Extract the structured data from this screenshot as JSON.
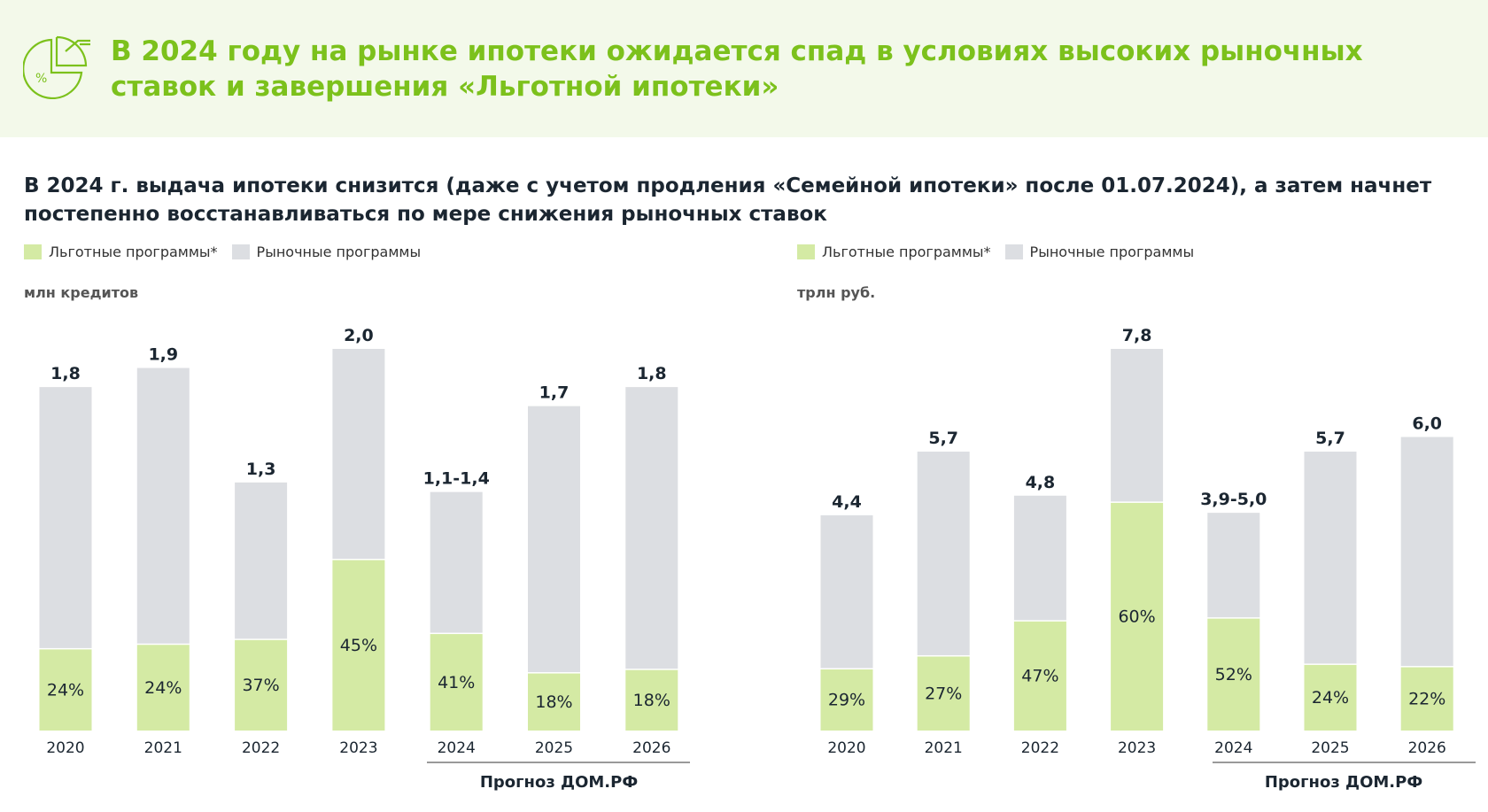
{
  "header": {
    "title": "В 2024 году на рынке ипотеки ожидается спад в условиях высоких рыночных ставок и завершения «Льготной ипотеки»",
    "icon": "pie-chart-percent-icon"
  },
  "subtitle": "В 2024 г. выдача ипотеки снизится (даже с учетом продления «Семейной ипотеки» после 01.07.2024), а затем начнет постепенно восстанавливаться по мере снижения рыночных ставок",
  "colors": {
    "title": "#7cc11c",
    "preferential": "#d4eaa4",
    "market": "#dcdee2",
    "text": "#1b2631"
  },
  "chart_data": [
    {
      "type": "bar",
      "stacked": true,
      "ylabel": "млн кредитов",
      "legend": [
        "Льготные программы*",
        "Рыночные программы"
      ],
      "categories": [
        "2020",
        "2021",
        "2022",
        "2023",
        "2024",
        "2025",
        "2026"
      ],
      "totals": [
        1.8,
        1.9,
        1.3,
        2.0,
        [
          1.1,
          1.4
        ],
        1.7,
        1.8
      ],
      "total_labels": [
        "1,8",
        "1,9",
        "1,3",
        "2,0",
        "1,1-1,4",
        "1,7",
        "1,8"
      ],
      "preferential_share_pct": [
        24,
        24,
        37,
        45,
        41,
        18,
        18
      ],
      "share_labels": [
        "24%",
        "24%",
        "37%",
        "45%",
        "41%",
        "18%",
        "18%"
      ],
      "forecast_label": "Прогноз ДОМ.РФ",
      "forecast_categories": [
        "2024",
        "2025",
        "2026"
      ]
    },
    {
      "type": "bar",
      "stacked": true,
      "ylabel": "трлн руб.",
      "legend": [
        "Льготные программы*",
        "Рыночные программы"
      ],
      "categories": [
        "2020",
        "2021",
        "2022",
        "2023",
        "2024",
        "2025",
        "2026"
      ],
      "totals": [
        4.4,
        5.7,
        4.8,
        7.8,
        [
          3.9,
          5.0
        ],
        5.7,
        6.0
      ],
      "total_labels": [
        "4,4",
        "5,7",
        "4,8",
        "7,8",
        "3,9-5,0",
        "5,7",
        "6,0"
      ],
      "preferential_share_pct": [
        29,
        27,
        47,
        60,
        52,
        24,
        22
      ],
      "share_labels": [
        "29%",
        "27%",
        "47%",
        "60%",
        "52%",
        "24%",
        "22%"
      ],
      "forecast_label": "Прогноз ДОМ.РФ",
      "forecast_categories": [
        "2024",
        "2025",
        "2026"
      ]
    }
  ]
}
